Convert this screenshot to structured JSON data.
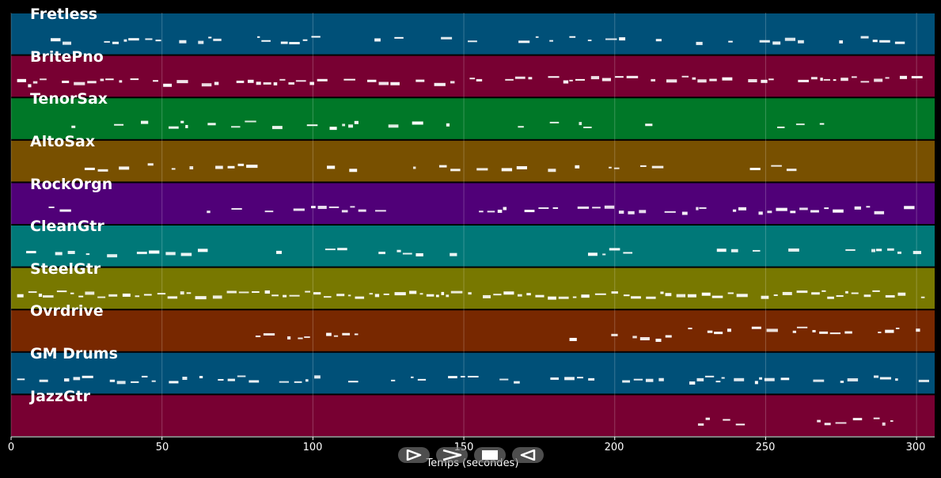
{
  "tracks": [
    {
      "name": "Fretless",
      "color": "#005078"
    },
    {
      "name": "BritePno",
      "color": "#780032"
    },
    {
      "name": "TenorSax",
      "color": "#007828"
    },
    {
      "name": "AltoSax",
      "color": "#785000"
    },
    {
      "name": "RockOrgn",
      "color": "#500078"
    },
    {
      "name": "CleanGtr",
      "color": "#007878"
    },
    {
      "name": "SteelGtr",
      "color": "#787800"
    },
    {
      "name": "Ovrdrive",
      "color": "#782800"
    },
    {
      "name": "GM Drums",
      "color": "#005078"
    },
    {
      "name": "JazzGtr",
      "color": "#780032"
    }
  ],
  "axis": {
    "xlabel": "Temps (secondes)",
    "xlim": [
      0,
      306
    ],
    "ticks": [
      "0",
      "50",
      "100",
      "150",
      "200",
      "250",
      "300"
    ],
    "grid": true
  },
  "controls": {
    "play": "play-icon",
    "forward": "fast-forward-icon",
    "stop": "stop-icon",
    "back": "rewind-icon"
  }
}
